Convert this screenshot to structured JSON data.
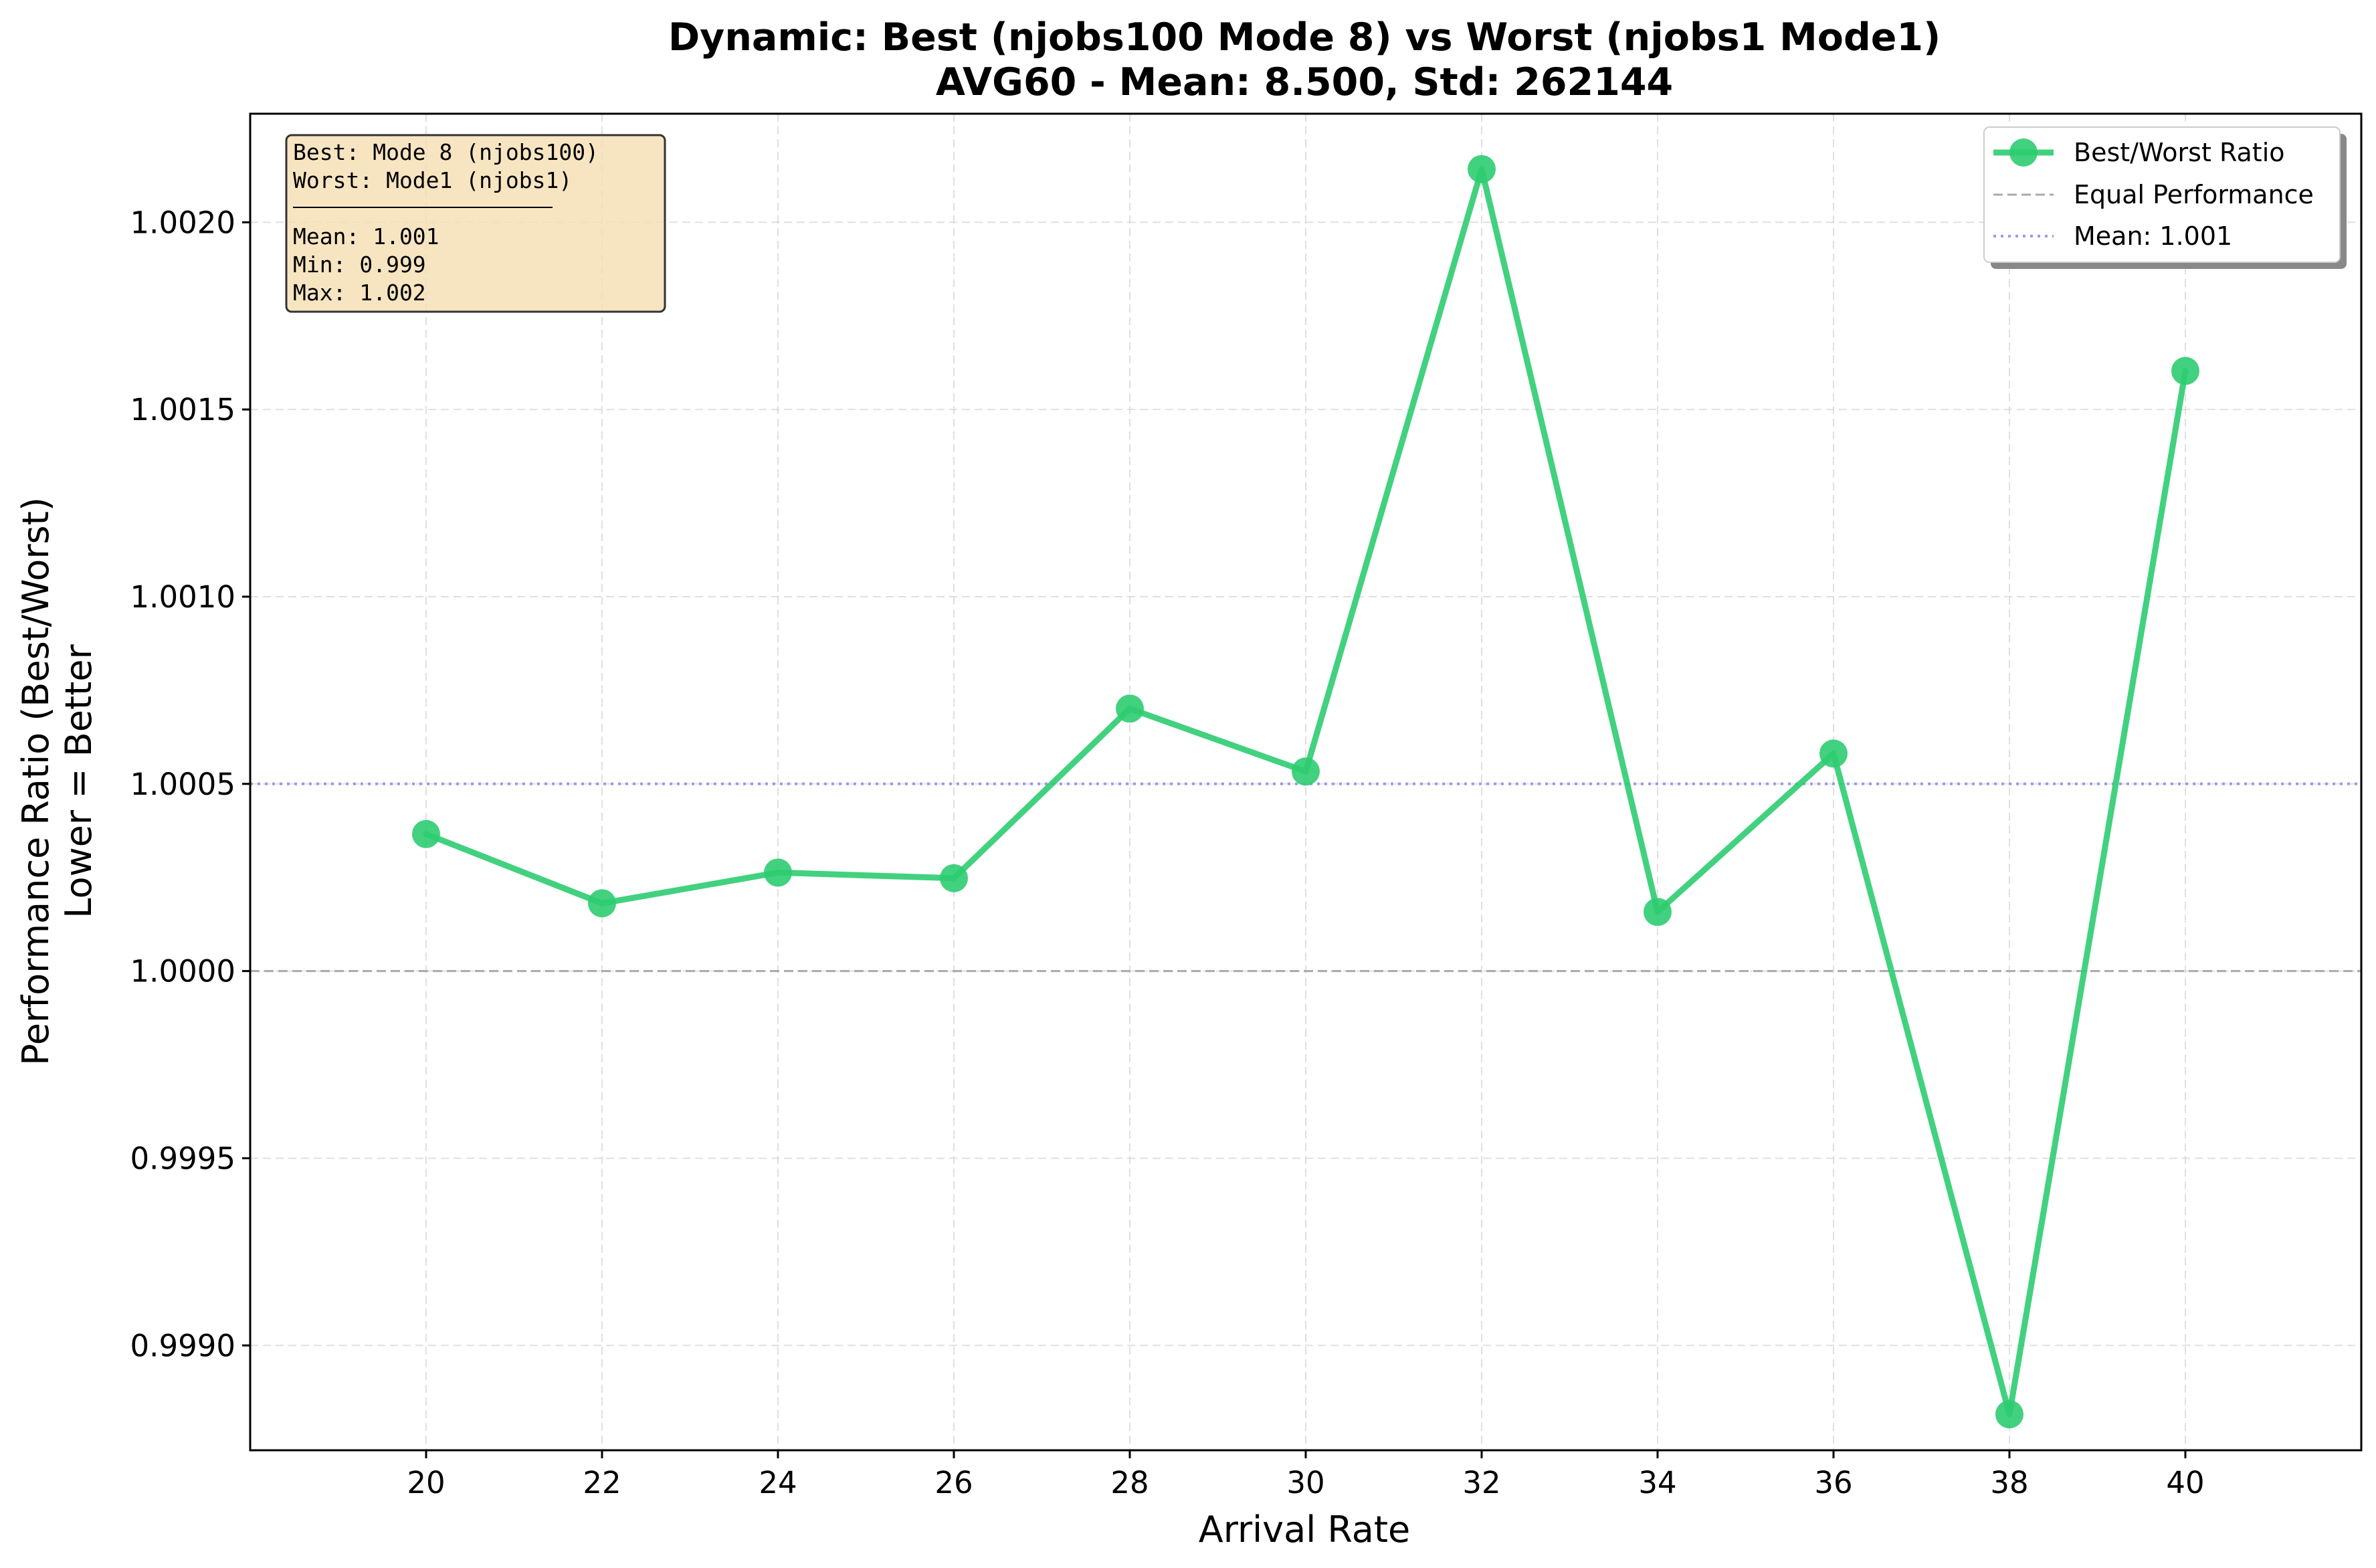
{
  "chart_data": {
    "type": "line",
    "title_line1": "Dynamic: Best (njobs100 Mode 8) vs Worst (njobs1 Mode1)",
    "title_line2": "AVG60 - Mean: 8.500, Std: 262144",
    "xlabel": "Arrival Rate",
    "ylabel_line1": "Performance Ratio (Best/Worst)",
    "ylabel_line2": "Lower = Better",
    "x": [
      20,
      22,
      24,
      26,
      28,
      30,
      32,
      34,
      36,
      38,
      40
    ],
    "xticks": [
      "20",
      "22",
      "24",
      "26",
      "28",
      "30",
      "32",
      "34",
      "36",
      "38",
      "40"
    ],
    "xlim": [
      18,
      42
    ],
    "yticks": [
      "0.9990",
      "0.9995",
      "1.0000",
      "1.0005",
      "1.0010",
      "1.0015",
      "1.0020"
    ],
    "ytick_values": [
      0.999,
      0.9995,
      1.0,
      1.0005,
      1.001,
      1.0015,
      1.002
    ],
    "ylim": [
      0.99872,
      1.00229
    ],
    "grid": true,
    "series": [
      {
        "name": "Best/Worst Ratio",
        "color": "#2ecc71",
        "values": [
          1.000366,
          1.000181,
          1.000263,
          1.000248,
          1.000701,
          1.000533,
          1.002142,
          1.000158,
          1.000581,
          0.998816,
          1.001603
        ]
      }
    ],
    "reference_lines": [
      {
        "name": "Equal Performance",
        "value": 1.0,
        "color": "#aaaaaa",
        "style": "dashed"
      },
      {
        "name": "Mean: 1.001",
        "value": 1.0005,
        "color": "#9999ee",
        "style": "dotted"
      }
    ],
    "legend_position": "top-right",
    "stats_box": {
      "lines": [
        "Best:  Mode 8 (njobs100)",
        "Worst: Mode1 (njobs1)",
        "────────────────────",
        "Mean:  1.001",
        "Min:   0.999",
        "Max:   1.002"
      ],
      "background": "#f5deb3"
    }
  }
}
